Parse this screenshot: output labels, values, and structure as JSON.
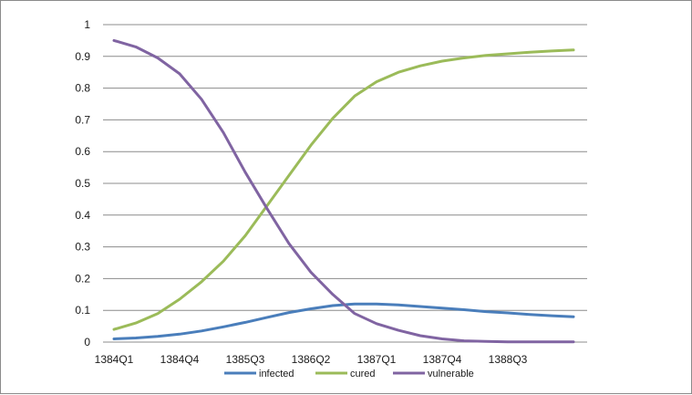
{
  "chart_data": {
    "type": "line",
    "title": "",
    "xlabel": "",
    "ylabel": "",
    "ylim": [
      0,
      1
    ],
    "yticks": [
      "0",
      "0.1",
      "0.2",
      "0.3",
      "0.4",
      "0.5",
      "0.6",
      "0.7",
      "0.8",
      "0.9",
      "1"
    ],
    "x_tick_labels": [
      "1384Q1",
      "1384Q4",
      "1385Q3",
      "1386Q2",
      "1387Q1",
      "1387Q4",
      "1388Q3"
    ],
    "x": [
      "1384Q1",
      "1384Q2",
      "1384Q3",
      "1384Q4",
      "1385Q1",
      "1385Q2",
      "1385Q3",
      "1385Q4",
      "1386Q1",
      "1386Q2",
      "1386Q3",
      "1386Q4",
      "1387Q1",
      "1387Q2",
      "1387Q3",
      "1387Q4",
      "1388Q1",
      "1388Q2",
      "1388Q3",
      "1388Q4",
      "1389Q1",
      "1389Q2"
    ],
    "grid": true,
    "legend_position": "bottom",
    "series": [
      {
        "name": "infected",
        "color": "#4a7ebb",
        "values": [
          0.01,
          0.013,
          0.018,
          0.025,
          0.035,
          0.048,
          0.062,
          0.078,
          0.093,
          0.105,
          0.115,
          0.12,
          0.12,
          0.117,
          0.112,
          0.107,
          0.102,
          0.096,
          0.092,
          0.087,
          0.083,
          0.08
        ]
      },
      {
        "name": "cured",
        "color": "#9bbb59",
        "values": [
          0.04,
          0.06,
          0.09,
          0.135,
          0.19,
          0.255,
          0.335,
          0.43,
          0.525,
          0.62,
          0.705,
          0.775,
          0.82,
          0.85,
          0.87,
          0.885,
          0.895,
          0.903,
          0.908,
          0.913,
          0.917,
          0.92
        ]
      },
      {
        "name": "vulnerable",
        "color": "#8064a2",
        "values": [
          0.95,
          0.93,
          0.895,
          0.845,
          0.765,
          0.66,
          0.535,
          0.42,
          0.31,
          0.22,
          0.15,
          0.09,
          0.058,
          0.037,
          0.02,
          0.01,
          0.004,
          0.002,
          0.001,
          0.001,
          0.001,
          0.001
        ]
      }
    ]
  }
}
